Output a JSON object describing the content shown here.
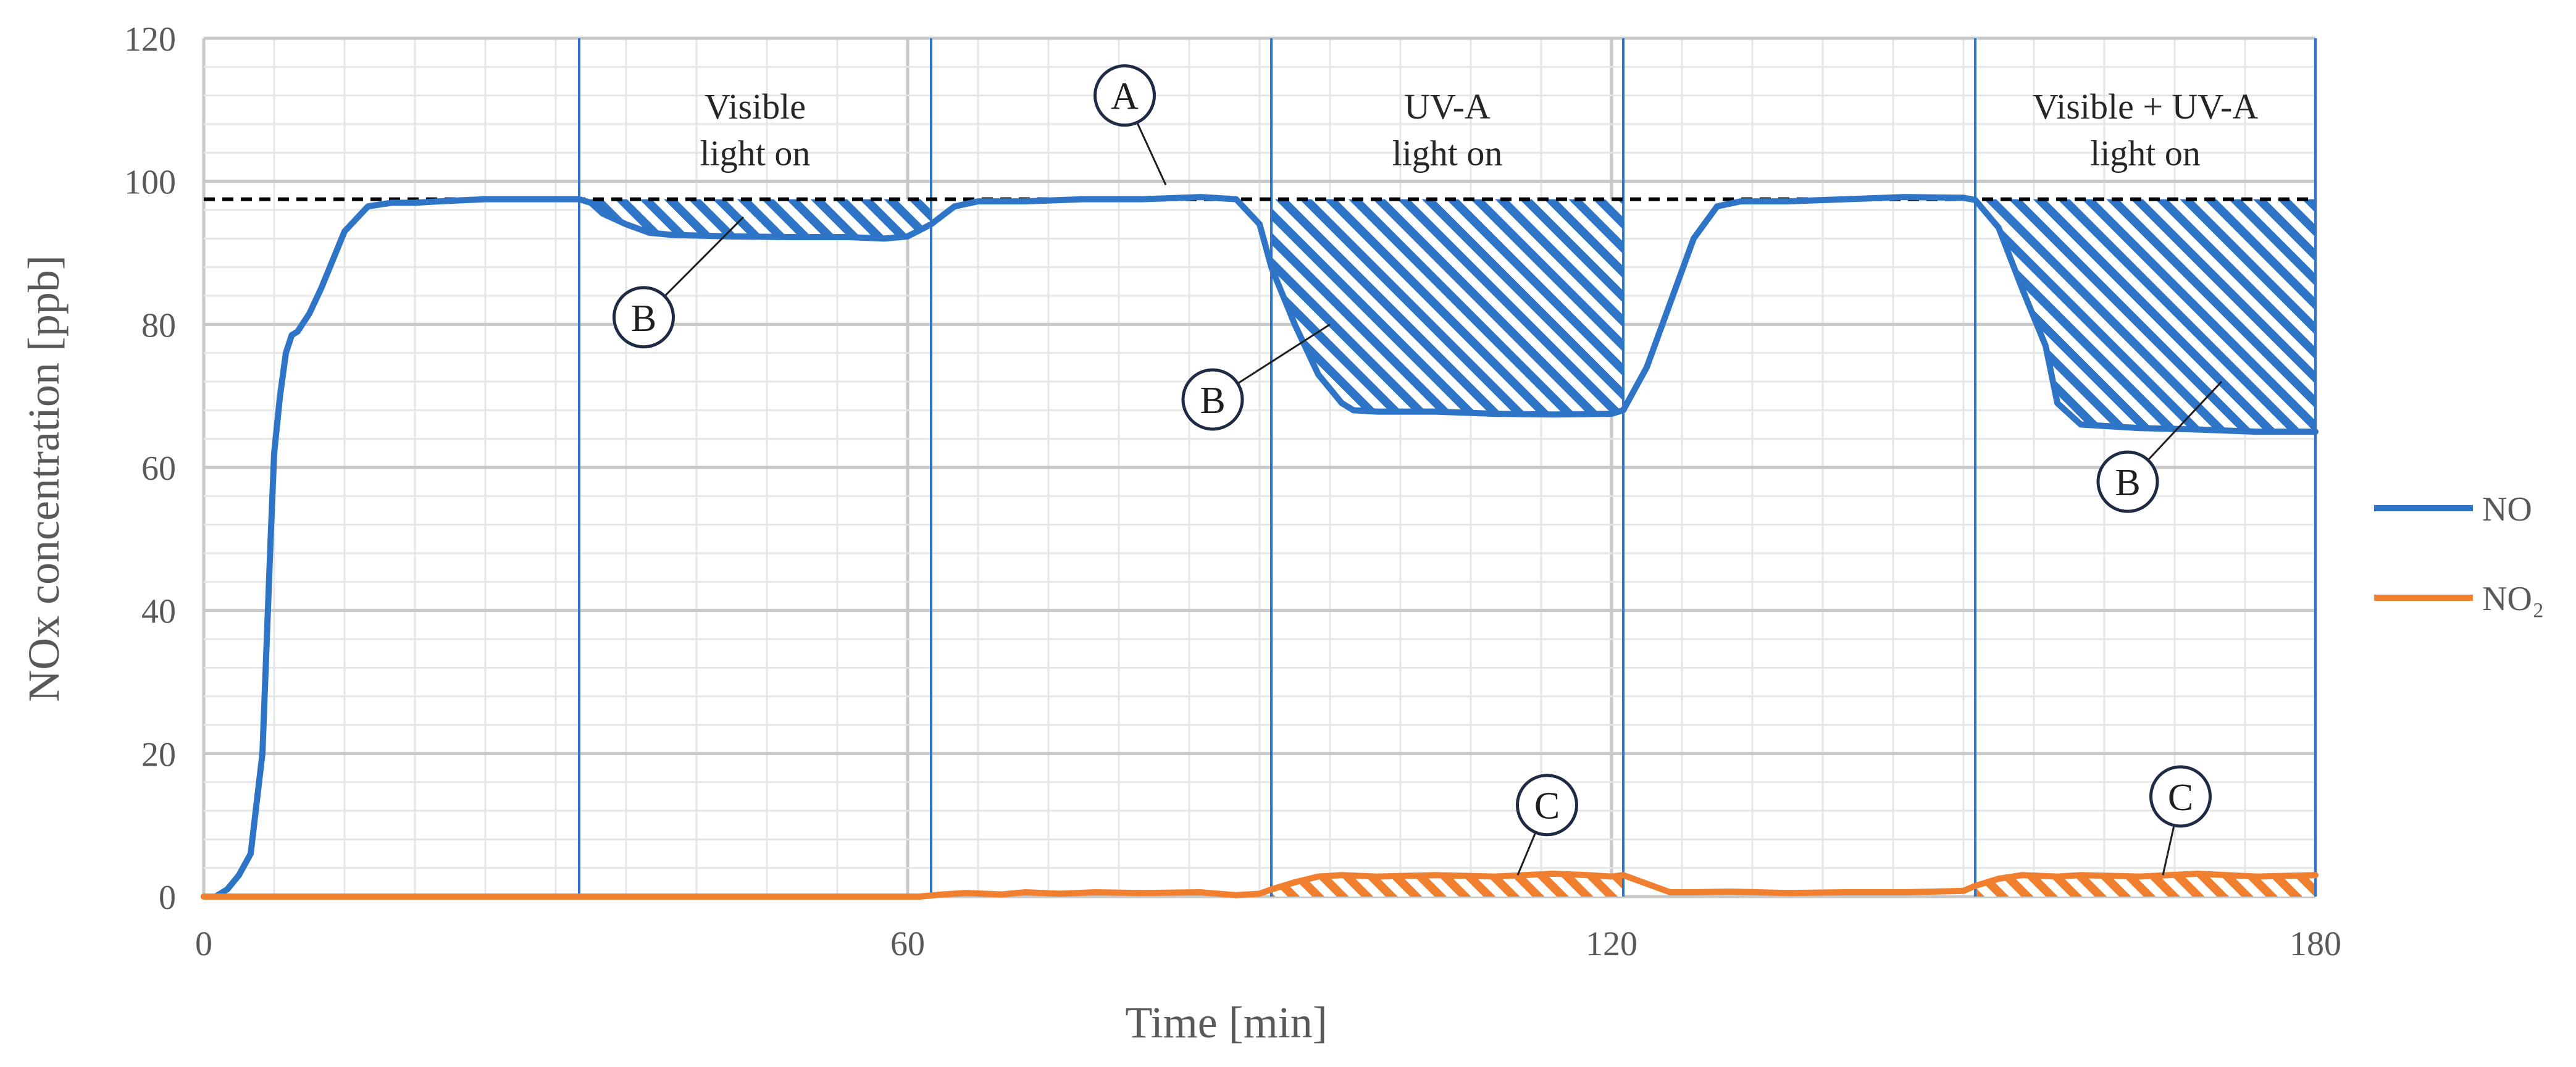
{
  "chart_data": {
    "type": "line",
    "xlabel": "Time [min]",
    "ylabel": "NOx concentration [ppb]",
    "xlim": [
      0,
      180
    ],
    "ylim": [
      0,
      120
    ],
    "xticks": [
      0,
      60,
      120,
      180
    ],
    "yticks": [
      0,
      20,
      40,
      60,
      80,
      100,
      120
    ],
    "grid": true,
    "legend_position": "right",
    "series": [
      {
        "name": "NO",
        "color": "#2e75c8",
        "x": [
          0,
          1,
          2,
          3,
          4,
          5,
          5.7,
          6,
          6.5,
          7,
          7.5,
          8,
          9,
          10,
          11,
          12,
          14,
          16,
          18,
          20,
          24,
          28,
          32,
          33,
          34,
          36,
          38,
          40,
          45,
          50,
          55,
          58,
          60,
          62,
          64,
          66,
          68,
          70,
          75,
          80,
          85,
          88,
          90,
          91,
          93,
          95,
          97,
          98,
          100,
          105,
          110,
          115,
          120,
          121,
          123,
          125,
          127,
          129,
          131,
          133,
          135,
          140,
          145,
          150,
          151,
          153,
          155,
          157,
          158,
          160,
          165,
          170,
          175,
          180
        ],
        "y": [
          0,
          0,
          1,
          3,
          6,
          20,
          50,
          62,
          70,
          76,
          78.5,
          79,
          81.5,
          85,
          89,
          93,
          96.5,
          97,
          97,
          97.2,
          97.5,
          97.5,
          97.5,
          97,
          95.5,
          94,
          92.8,
          92.5,
          92.3,
          92.2,
          92.2,
          92,
          92.3,
          94,
          96.5,
          97.2,
          97.2,
          97.2,
          97.5,
          97.5,
          97.8,
          97.5,
          94,
          88,
          80,
          73,
          69,
          68,
          67.8,
          67.8,
          67.5,
          67.4,
          67.5,
          68,
          74,
          83,
          92,
          96.5,
          97.2,
          97.2,
          97.2,
          97.5,
          97.8,
          97.7,
          97.4,
          93.5,
          85,
          77,
          69,
          66,
          65.5,
          65.3,
          65,
          65
        ],
        "shaded_regions": [
          [
            32,
            62
          ],
          [
            91,
            121
          ],
          [
            151,
            180
          ]
        ]
      },
      {
        "name": "NO₂",
        "color": "#f08030",
        "x": [
          0,
          10,
          20,
          30,
          40,
          50,
          60,
          61,
          63,
          65,
          68,
          70,
          73,
          76,
          80,
          85,
          88,
          90,
          91,
          93,
          95,
          97,
          100,
          105,
          110,
          115,
          118,
          120,
          121,
          123,
          125,
          127,
          130,
          135,
          140,
          145,
          150,
          151,
          153,
          155,
          158,
          160,
          165,
          170,
          175,
          180
        ],
        "y": [
          0,
          0,
          0,
          0,
          0,
          0,
          0,
          0,
          0.3,
          0.5,
          0.3,
          0.6,
          0.4,
          0.6,
          0.5,
          0.6,
          0.2,
          0.4,
          1,
          2,
          2.8,
          3,
          2.8,
          3,
          2.8,
          3.2,
          3,
          2.8,
          3,
          1.8,
          0.6,
          0.6,
          0.7,
          0.5,
          0.6,
          0.6,
          0.8,
          1.5,
          2.5,
          3,
          2.8,
          3,
          2.8,
          3.2,
          2.8,
          3
        ],
        "shaded_regions": [
          [
            91,
            121
          ],
          [
            151,
            180
          ]
        ]
      }
    ],
    "reference_line": {
      "y": 97.5,
      "style": "dashed",
      "color": "#000000"
    },
    "light_phase_lines_x": [
      32,
      62,
      91,
      121,
      151,
      180
    ],
    "annotations": [
      {
        "lines": [
          "Visible",
          "light on"
        ],
        "x": 47,
        "y": [
          110.5,
          104
        ]
      },
      {
        "lines": [
          "UV-A",
          "light on"
        ],
        "x": 106,
        "y": [
          110.5,
          104
        ]
      },
      {
        "lines": [
          "Visible + UV-A",
          "light on"
        ],
        "x": 165.5,
        "y": [
          110.5,
          104
        ]
      }
    ],
    "markers": [
      {
        "label": "A",
        "cx": 78.5,
        "cy": 112,
        "lx": 82,
        "ly": 99.5
      },
      {
        "label": "B",
        "cx": 37.5,
        "cy": 81,
        "lx": 46,
        "ly": 95
      },
      {
        "label": "B",
        "cx": 86,
        "cy": 69.5,
        "lx": 96,
        "ly": 80
      },
      {
        "label": "B",
        "cx": 164,
        "cy": 58,
        "lx": 172,
        "ly": 72
      },
      {
        "label": "C",
        "cx": 114.5,
        "cy": 12.8,
        "lx": 112,
        "ly": 3
      },
      {
        "label": "C",
        "cx": 168.5,
        "cy": 14,
        "lx": 167,
        "ly": 3
      }
    ]
  }
}
